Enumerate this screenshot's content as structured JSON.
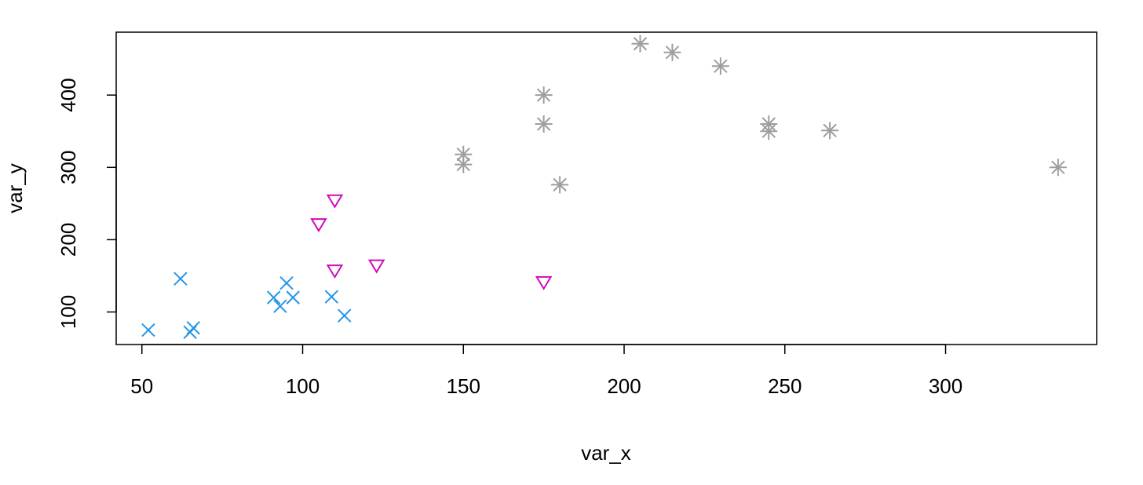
{
  "chart_data": {
    "type": "scatter",
    "title": "",
    "xlabel": "var_x",
    "ylabel": "var_y",
    "xlim": [
      42,
      347
    ],
    "ylim": [
      55,
      487
    ],
    "xticks": [
      50,
      100,
      150,
      200,
      250,
      300
    ],
    "yticks": [
      100,
      200,
      300,
      400
    ],
    "grid": false,
    "legend": "none",
    "series": [
      {
        "marker": "x",
        "color": "#2297E6",
        "points": [
          [
            52,
            75
          ],
          [
            62,
            146
          ],
          [
            65,
            72
          ],
          [
            66,
            78
          ],
          [
            91,
            120
          ],
          [
            93,
            108
          ],
          [
            95,
            140
          ],
          [
            97,
            120
          ],
          [
            109,
            121
          ],
          [
            113,
            95
          ]
        ]
      },
      {
        "marker": "triangle-down",
        "color": "#CD0BBC",
        "points": [
          [
            105,
            222
          ],
          [
            110,
            255
          ],
          [
            110,
            158
          ],
          [
            123,
            165
          ],
          [
            175,
            142
          ]
        ]
      },
      {
        "marker": "asterisk",
        "color": "#9E9E9E",
        "points": [
          [
            150,
            318
          ],
          [
            150,
            304
          ],
          [
            175,
            400
          ],
          [
            175,
            360
          ],
          [
            180,
            276
          ],
          [
            205,
            471
          ],
          [
            215,
            459
          ],
          [
            230,
            440
          ],
          [
            245,
            360
          ],
          [
            245,
            350
          ],
          [
            264,
            351
          ],
          [
            335,
            300
          ]
        ]
      }
    ]
  }
}
